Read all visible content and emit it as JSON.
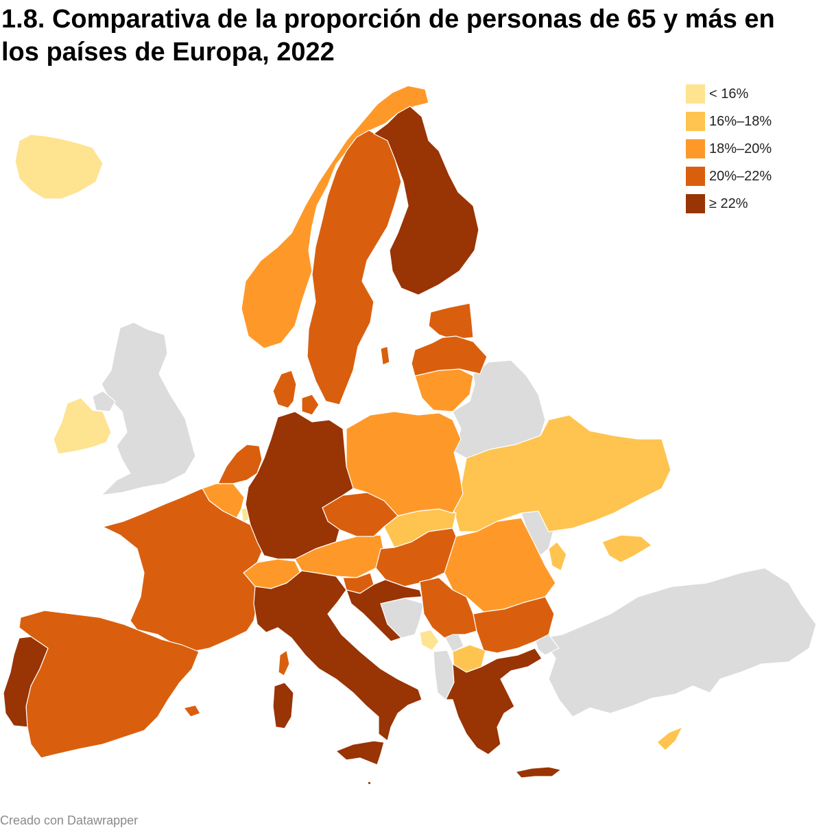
{
  "title": "1.8. Comparativa de la proporción de personas de 65 y más en los países de Europa, 2022",
  "legend": [
    {
      "label": "< 16%",
      "color": "#fee391"
    },
    {
      "label": "16%–18%",
      "color": "#fec44f"
    },
    {
      "label": "18%–20%",
      "color": "#fe9929"
    },
    {
      "label": "20%–22%",
      "color": "#d95f0e"
    },
    {
      "label": "≥ 22%",
      "color": "#993404"
    }
  ],
  "no_data_color": "#dcdcdc",
  "credit": "Creado con Datawrapper",
  "countries": {
    "iceland": "< 16%",
    "ireland": "< 16%",
    "luxembourg": "< 16%",
    "cyprus": "16%–18%",
    "montenegro": "< 16%",
    "north_macedonia": "16%–18%",
    "slovakia": "16%–18%",
    "ukraine": "16%–18%",
    "moldova": "16%–18%",
    "norway": "18%–20%",
    "lithuania": "18%–20%",
    "poland": "18%–20%",
    "belgium": "18%–20%",
    "austria": "18%–20%",
    "switzerland": "18%–20%",
    "romania": "18%–20%",
    "sweden": "20%–22%",
    "estonia": "20%–22%",
    "latvia": "20%–22%",
    "denmark": "20%–22%",
    "netherlands": "20%–22%",
    "france": "20%–22%",
    "spain": "20%–22%",
    "czechia": "20%–22%",
    "hungary": "20%–22%",
    "slovenia": "20%–22%",
    "serbia": "20%–22%",
    "bulgaria": "20%–22%",
    "finland": "≥ 22%",
    "germany": "≥ 22%",
    "italy": "≥ 22%",
    "portugal": "≥ 22%",
    "greece": "≥ 22%",
    "croatia": "≥ 22%",
    "malta": "≥ 22%",
    "united_kingdom": "no data",
    "belarus": "no data",
    "turkey": "no data",
    "bosnia": "no data",
    "albania": "no data",
    "kosovo": "no data"
  }
}
